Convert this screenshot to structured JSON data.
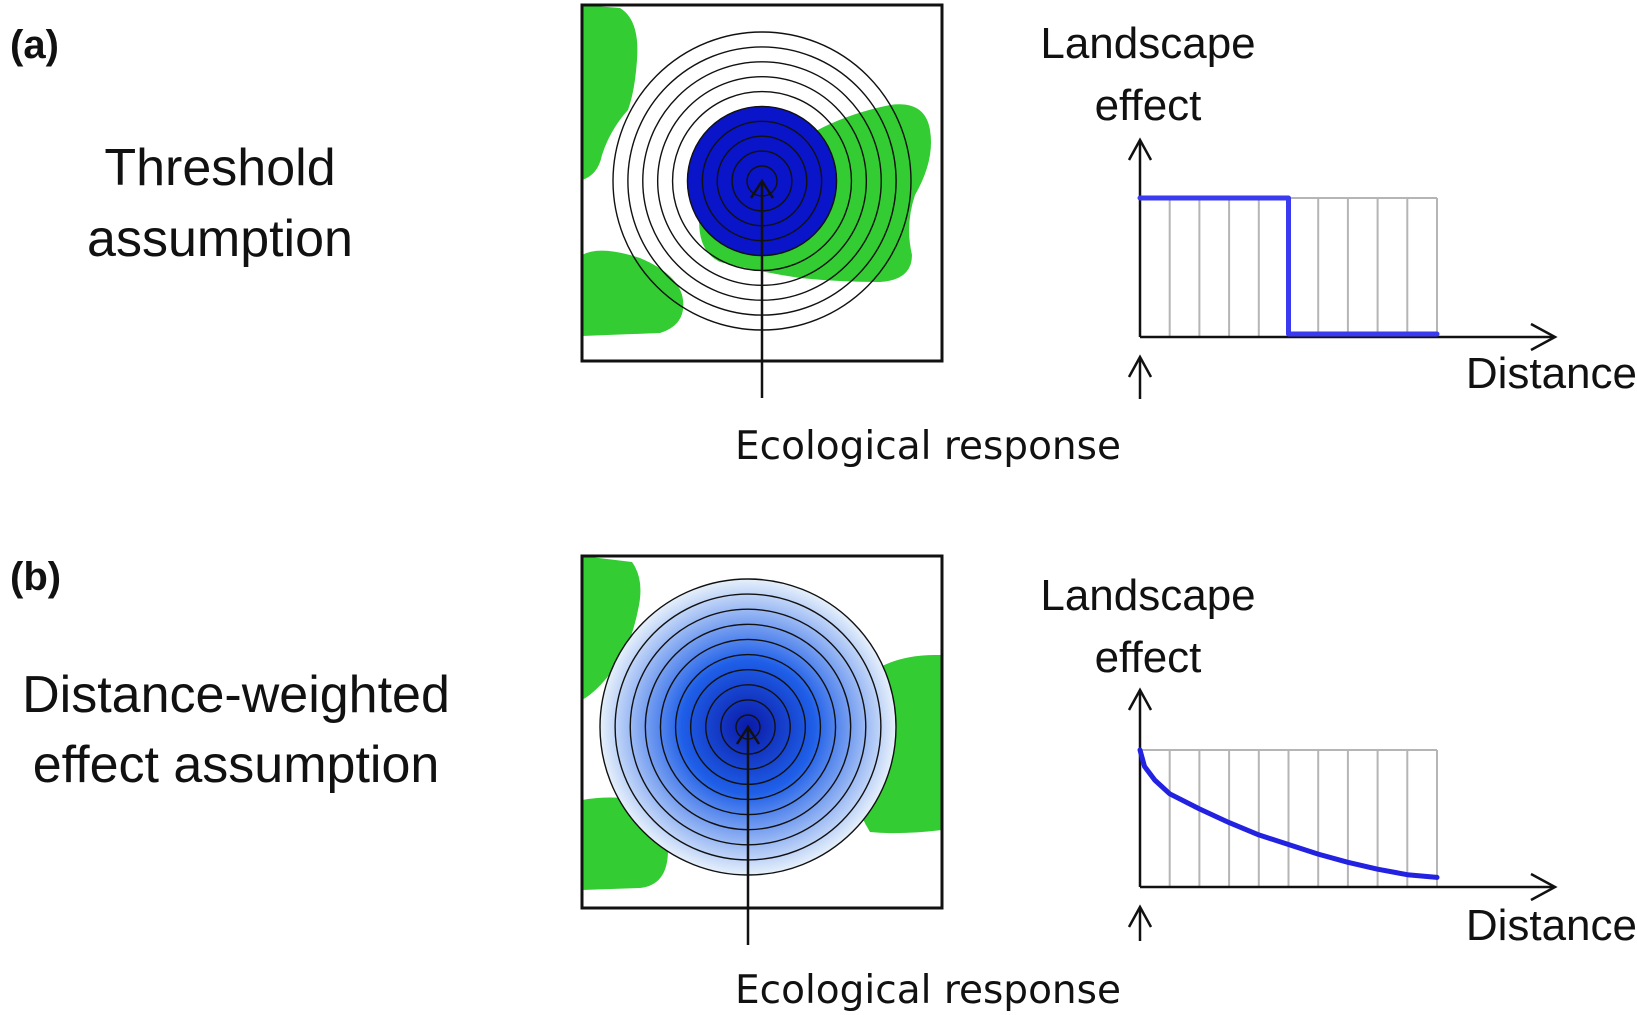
{
  "colors": {
    "habitat_green": "#33cc33",
    "threshold_blue": "#0a14c8",
    "curve_blue": "#2a2ae6",
    "grid_gray": "#b5b5b5",
    "gradient_center": "#0a1aa8",
    "gradient_mid": "#1f5fe8",
    "gradient_edge": "#e6f0fb"
  },
  "panels": [
    {
      "letter": "(a)",
      "assumption_lines": [
        "Threshold",
        "assumption"
      ],
      "landscape_label_lines": [
        "Landscape",
        "effect"
      ],
      "distance_label": "Distance",
      "response_label": "Ecological response",
      "rings": 10,
      "fill_mode": "threshold"
    },
    {
      "letter": "(b)",
      "assumption_lines": [
        "Distance-weighted",
        "effect assumption"
      ],
      "landscape_label_lines": [
        "Landscape",
        "effect"
      ],
      "distance_label": "Distance",
      "response_label": "Ecological response",
      "rings": 10,
      "fill_mode": "gradient"
    }
  ],
  "chart_data": [
    {
      "type": "line",
      "x": [
        0,
        1,
        2,
        3,
        4,
        5,
        6,
        7,
        8,
        9,
        10
      ],
      "y": [
        1,
        1,
        1,
        1,
        1,
        0,
        0,
        0,
        0,
        0,
        0
      ],
      "xlabel": "Distance",
      "ylabel": "Landscape effect",
      "grid_columns": 10,
      "step_at": 5,
      "curve": "step"
    },
    {
      "type": "line",
      "x": [
        0,
        0.15,
        0.5,
        1,
        2,
        3,
        4,
        5,
        6,
        7,
        8,
        9,
        10
      ],
      "y": [
        1,
        0.88,
        0.78,
        0.68,
        0.57,
        0.47,
        0.38,
        0.31,
        0.24,
        0.18,
        0.13,
        0.09,
        0.07
      ],
      "xlabel": "Distance",
      "ylabel": "Landscape effect",
      "grid_columns": 10,
      "curve": "decay"
    }
  ]
}
